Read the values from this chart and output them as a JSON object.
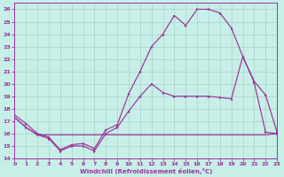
{
  "xlabel": "Windchill (Refroidissement éolien,°C)",
  "bg_color": "#c8eee8",
  "grid_color": "#a8d8d0",
  "line_color": "#993399",
  "xlim": [
    0,
    23
  ],
  "ylim": [
    14,
    26.5
  ],
  "xtick_vals": [
    0,
    1,
    2,
    3,
    4,
    5,
    6,
    7,
    8,
    9,
    10,
    11,
    12,
    13,
    14,
    15,
    16,
    17,
    18,
    19,
    20,
    21,
    22,
    23
  ],
  "ytick_vals": [
    14,
    15,
    16,
    17,
    18,
    19,
    20,
    21,
    22,
    23,
    24,
    25,
    26
  ],
  "line1_x": [
    0,
    1,
    2,
    3,
    4,
    5,
    6,
    7,
    8,
    9,
    10,
    11,
    12,
    13,
    14,
    15,
    16,
    17,
    18,
    19,
    20,
    21,
    22,
    23
  ],
  "line1_y": [
    17.5,
    16.8,
    16.0,
    15.7,
    14.7,
    15.1,
    15.2,
    14.8,
    16.3,
    16.7,
    19.2,
    21.0,
    23.0,
    24.0,
    25.5,
    24.7,
    26.0,
    26.0,
    25.7,
    24.5,
    22.2,
    20.2,
    19.1,
    16.1
  ],
  "line2_x": [
    0,
    1,
    2,
    3,
    4,
    5,
    6,
    7,
    8,
    9,
    10,
    11,
    12,
    13,
    14,
    15,
    16,
    17,
    18,
    19,
    20,
    21,
    22,
    23
  ],
  "line2_y": [
    17.3,
    16.5,
    15.9,
    15.6,
    14.6,
    15.0,
    15.0,
    14.6,
    16.0,
    16.5,
    17.8,
    19.0,
    20.0,
    19.3,
    19.0,
    19.0,
    19.0,
    19.0,
    18.9,
    18.8,
    22.2,
    20.1,
    16.1,
    16.0
  ],
  "line3_x": [
    0,
    1,
    2,
    3,
    4,
    5,
    6,
    7,
    8,
    9,
    10,
    11,
    12,
    13,
    14,
    15,
    16,
    17,
    18,
    19,
    20,
    21,
    22,
    23
  ],
  "line3_y": [
    17.3,
    16.5,
    15.9,
    15.9,
    15.9,
    15.9,
    15.9,
    15.9,
    15.9,
    15.9,
    15.9,
    15.9,
    15.9,
    15.9,
    15.9,
    15.9,
    15.9,
    15.9,
    15.9,
    15.9,
    15.9,
    15.9,
    15.9,
    16.0
  ]
}
